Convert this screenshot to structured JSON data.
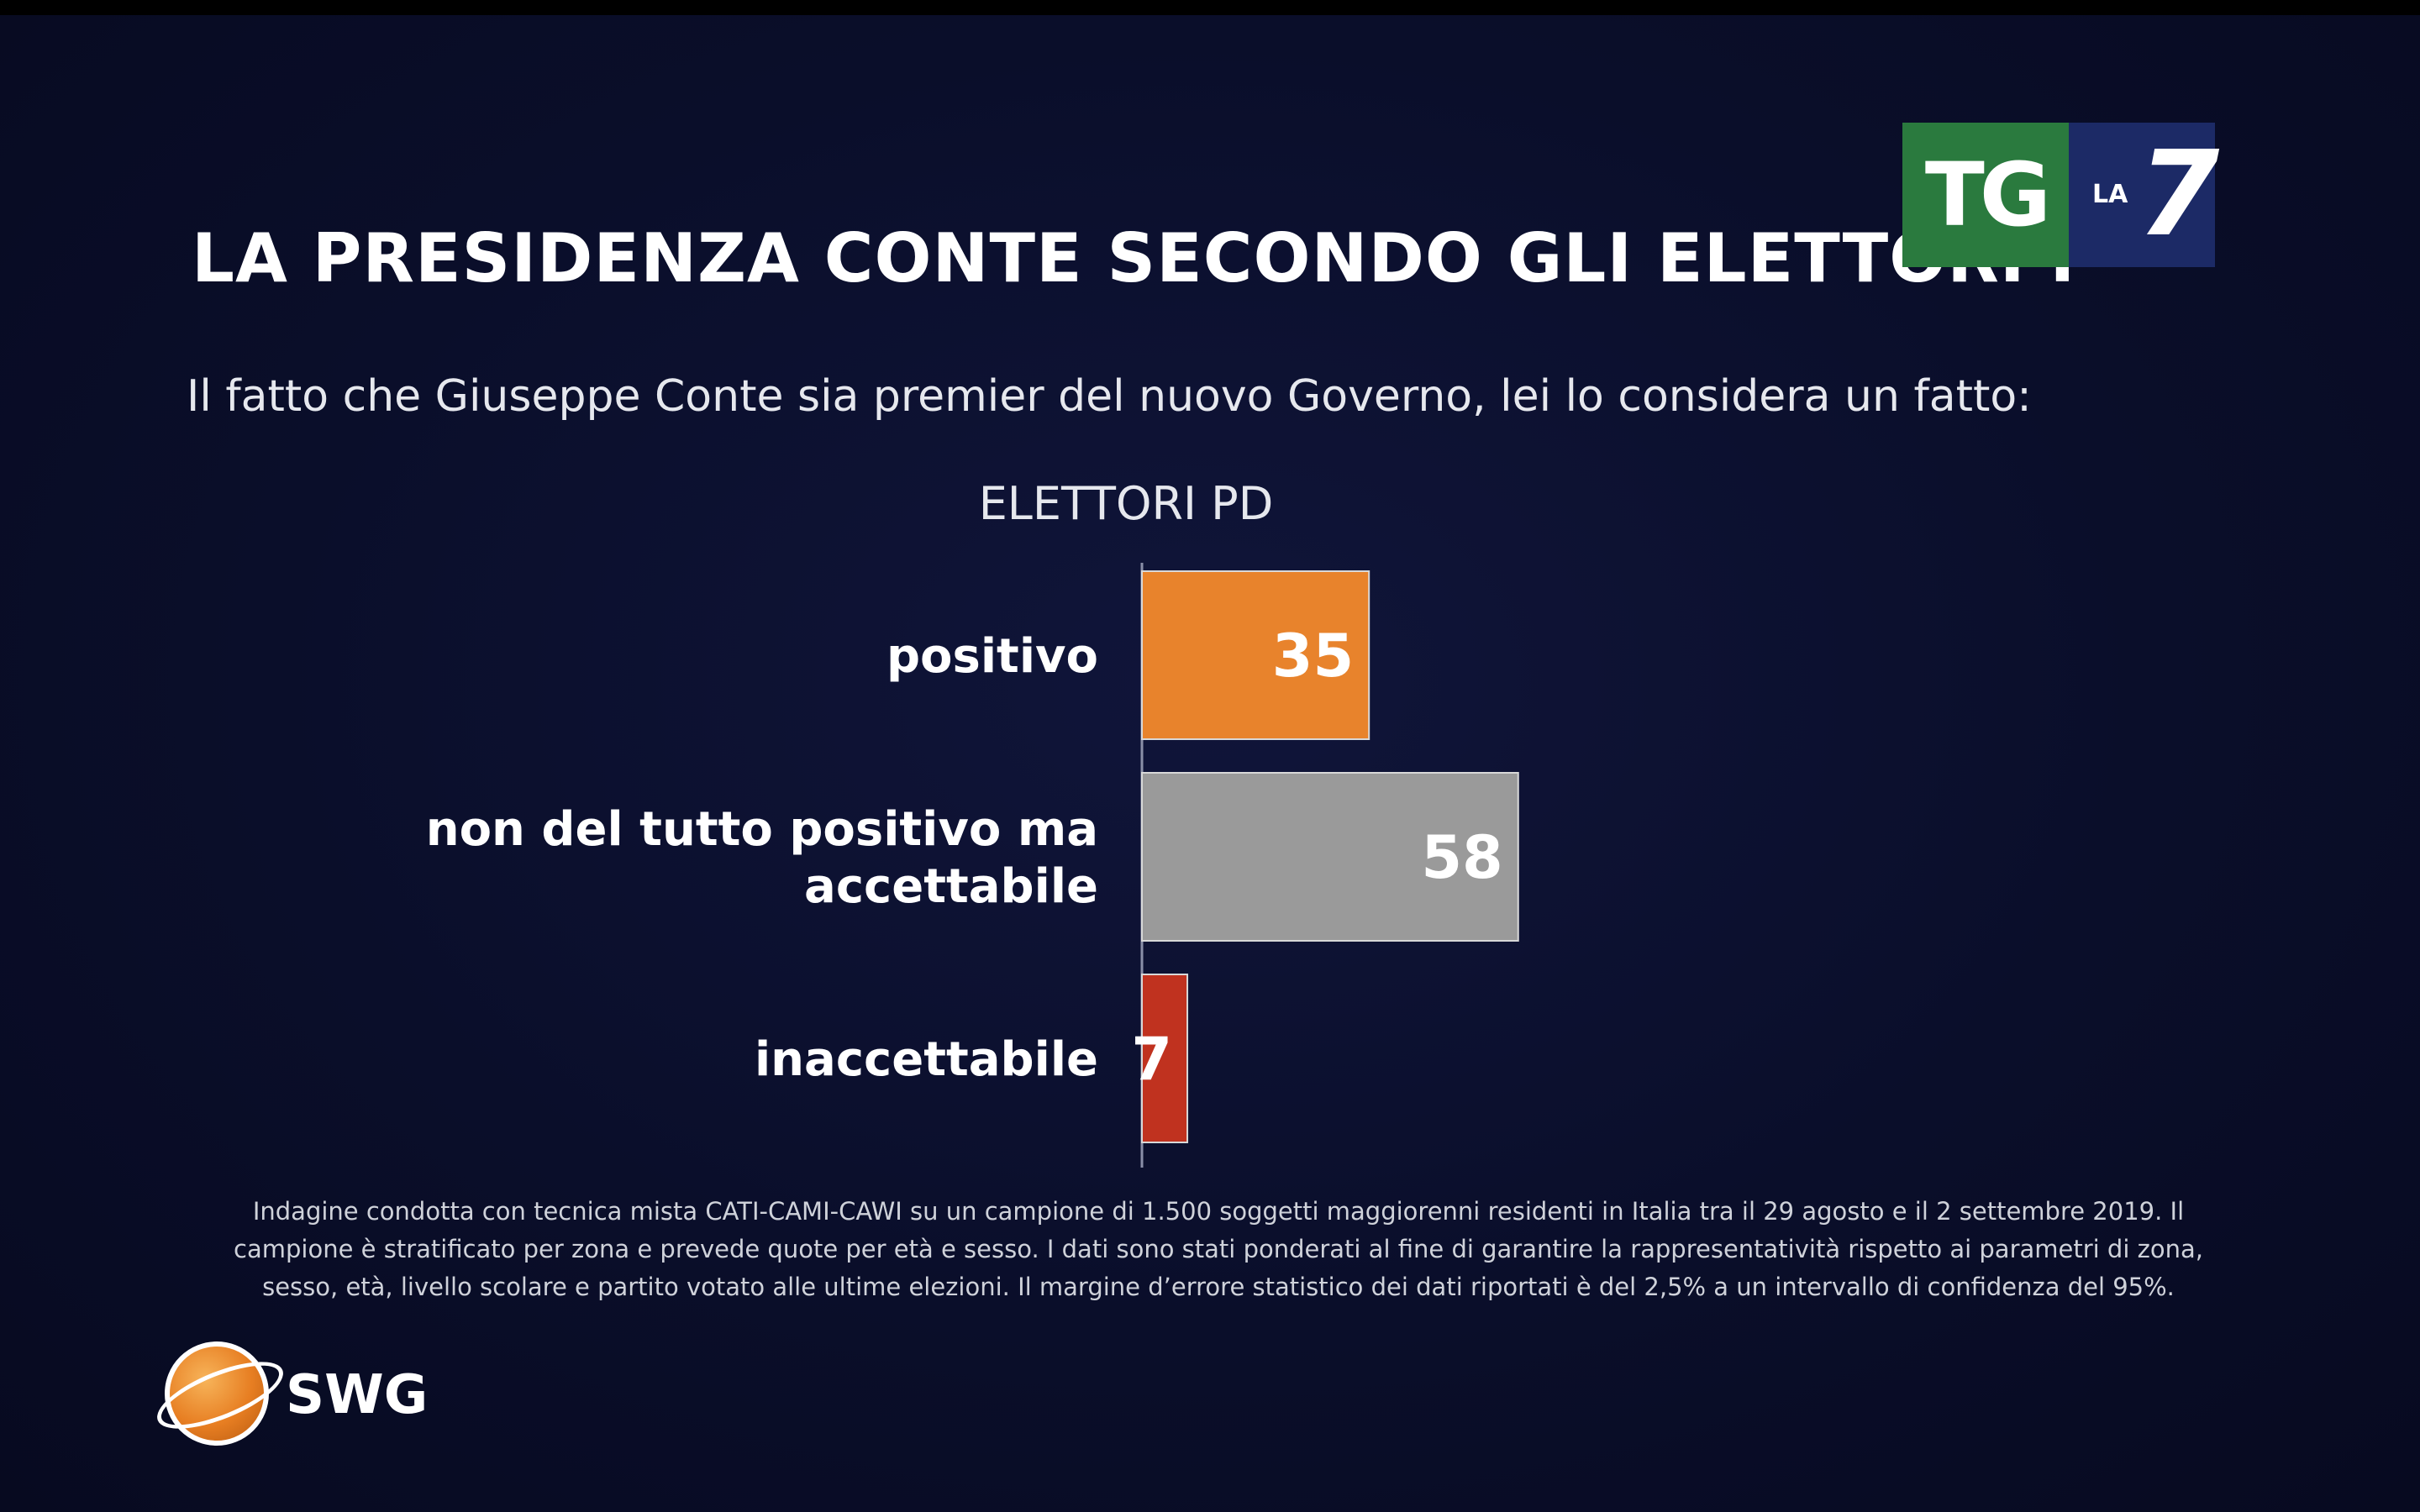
{
  "title": "LA PRESIDENZA CONTE SECONDO GLI ELETTORI PD",
  "subtitle": "Il fatto che Giuseppe Conte sia premier del nuovo Governo, lei lo considera un fatto:",
  "group_label": "ELETTORI PD",
  "logo": {
    "tg": "TG",
    "la": "LA",
    "seven": "7"
  },
  "footnote": "Indagine condotta con tecnica mista CATI-CAMI-CAWI su un campione di 1.500 soggetti maggiorenni residenti in Italia tra il 29 agosto e il  2 settembre 2019. Il campione è stratificato per zona e prevede quote per età e sesso. I dati sono stati ponderati al fine di garantire la rappresentatività rispetto ai parametri di zona, sesso, età, livello scolare e partito votato alle ultime elezioni. Il margine d’errore statistico dei dati riportati è del 2,5% a un intervallo di confidenza del 95%.",
  "source_logo": "SWG",
  "chart_data": {
    "type": "bar",
    "orientation": "horizontal",
    "title": "ELETTORI PD",
    "categories": [
      [
        "positivo"
      ],
      [
        "non del tutto positivo ma",
        "accettabile"
      ],
      [
        "inaccettabile"
      ]
    ],
    "values": [
      35,
      58,
      7
    ],
    "colors": [
      "#e8832c",
      "#9a9a9a",
      "#c0321f"
    ],
    "xlim": [
      0,
      100
    ],
    "grid": false,
    "legend": "none"
  }
}
